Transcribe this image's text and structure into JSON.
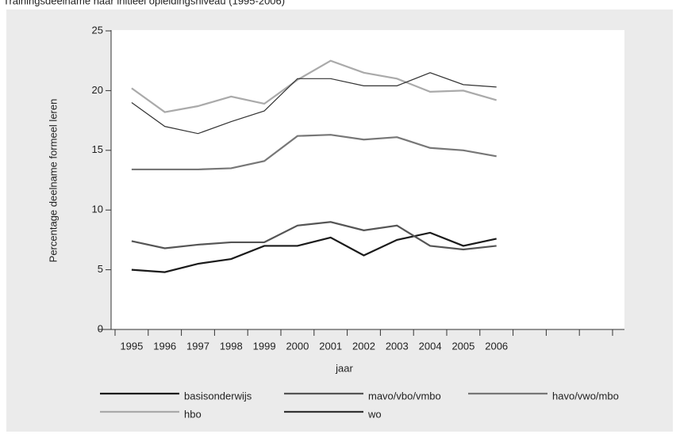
{
  "chart_data": {
    "type": "line",
    "title": "Trainingsdeelname naar initieel opleidingsniveau (1995-2006)",
    "x_label": "jaar",
    "y_label": "Percentage deelname formeel leren",
    "categories": [
      "1995",
      "1996",
      "1997",
      "1998",
      "1999",
      "2000",
      "2001",
      "2002",
      "2003",
      "2004",
      "2005",
      "2006"
    ],
    "series": [
      {
        "name": "basisonderwijs",
        "color": "#1a1a1a",
        "values": [
          5.0,
          4.8,
          5.5,
          5.9,
          7.0,
          7.0,
          7.7,
          6.2,
          7.5,
          8.1,
          7.0,
          7.6
        ]
      },
      {
        "name": "mavo/vbo/vmbo",
        "color": "#555555",
        "values": [
          7.4,
          6.8,
          7.1,
          7.3,
          7.3,
          8.7,
          9.0,
          8.3,
          8.7,
          7.0,
          6.7,
          7.0
        ]
      },
      {
        "name": "havo/vwo/mbo",
        "color": "#777777",
        "values": [
          13.4,
          13.4,
          13.4,
          13.5,
          14.1,
          16.2,
          16.3,
          15.9,
          16.1,
          15.2,
          15.0,
          14.5
        ]
      },
      {
        "name": "hbo",
        "color": "#aaaaaa",
        "values": [
          20.2,
          18.2,
          18.7,
          19.5,
          18.9,
          20.9,
          22.5,
          21.5,
          21.0,
          19.9,
          20.0,
          19.2
        ]
      },
      {
        "name": "wo",
        "color": "#333333",
        "values": [
          19.0,
          17.0,
          16.4,
          17.4,
          18.3,
          21.0,
          21.0,
          20.4,
          20.4,
          21.5,
          20.5,
          20.3
        ]
      }
    ],
    "ylim": [
      0,
      25
    ],
    "yticks": [
      0,
      5,
      10,
      15,
      20,
      25
    ],
    "grid": false
  }
}
